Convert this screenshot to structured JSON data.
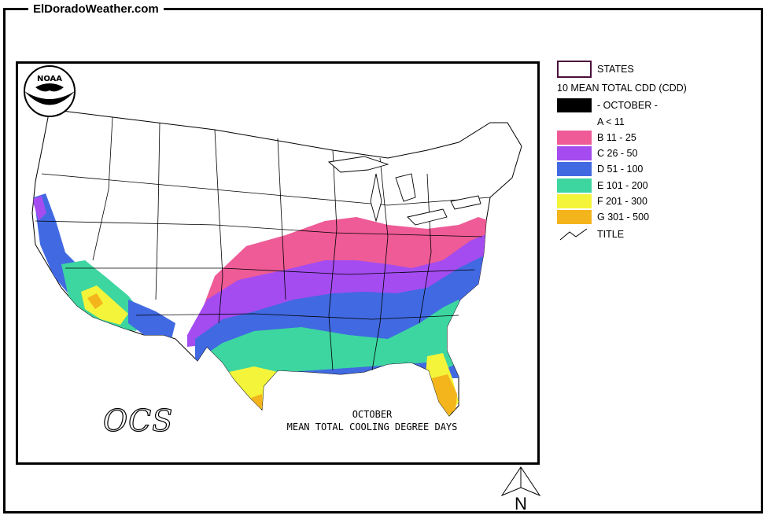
{
  "site": {
    "title": "ElDoradoWeather.com"
  },
  "map": {
    "caption_line1": "OCTOBER",
    "caption_line2": "MEAN TOTAL COOLING DEGREE DAYS",
    "logo_text": "NOAA",
    "ocs_text": "OCS",
    "north_label": "N"
  },
  "legend": {
    "states_label": "STATES",
    "dataset_label": "10 MEAN TOTAL CDD (CDD)",
    "month_label": "- OCTOBER -",
    "title_label": "TITLE",
    "classes": [
      {
        "label": "A < 11",
        "color": "#ffffff"
      },
      {
        "label": "B 11 - 25",
        "color": "#ee5b96"
      },
      {
        "label": "C 26 - 50",
        "color": "#a44cf0"
      },
      {
        "label": "D 51 - 100",
        "color": "#4169e1"
      },
      {
        "label": "E 101 - 200",
        "color": "#3dd6a0"
      },
      {
        "label": "F 201 - 300",
        "color": "#f4f43a"
      },
      {
        "label": "G 301 - 500",
        "color": "#f4b41c"
      }
    ],
    "states_outline_color": "#4b0f3c"
  }
}
